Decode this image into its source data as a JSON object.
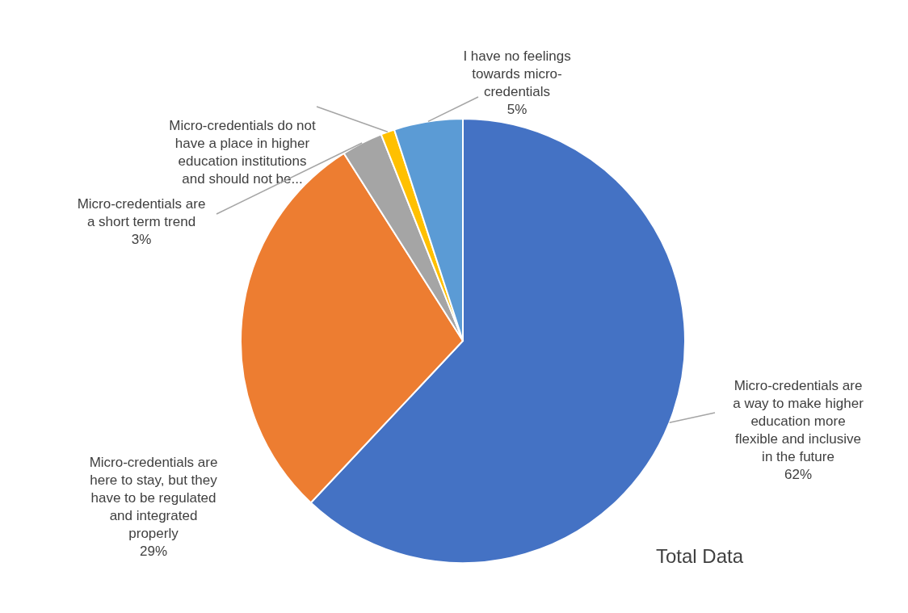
{
  "chart_data": {
    "type": "pie",
    "title": "Total Data",
    "categories": [
      "Micro-credentials are a way to make higher education more flexible and inclusive in the future",
      "Micro-credentials are here to stay, but they have to be regulated and integrated properly",
      "Micro-credentials are a short term trend",
      "Micro-credentials do not have a place in higher education institutions and should not be...",
      "I have no feelings towards micro-credentials"
    ],
    "values": [
      62,
      29,
      3,
      1,
      5
    ],
    "value_labels": [
      "62%",
      "29%",
      "3%",
      null,
      "5%"
    ],
    "colors": [
      "#4472c4",
      "#ed7d31",
      "#a5a5a5",
      "#ffc000",
      "#5b9bd5"
    ]
  }
}
